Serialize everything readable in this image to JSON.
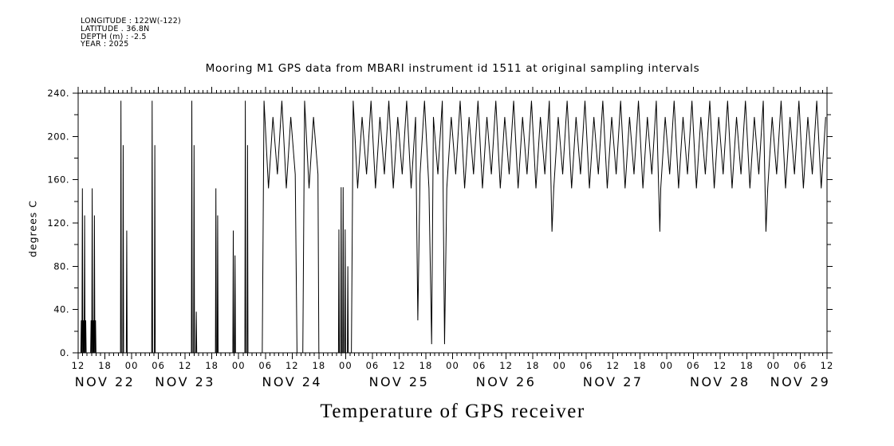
{
  "header": {
    "lines": [
      "LONGITUDE : 122W(-122)",
      "LATITUDE . 36.8N",
      "DEPTH (m) : -2.5",
      "YEAR : 2025"
    ]
  },
  "title": "Mooring M1 GPS data from MBARI instrument id 1511 at original sampling intervals",
  "bottom_title": "Temperature of GPS receiver",
  "chart_data": {
    "type": "line",
    "title": "Mooring M1 GPS data from MBARI instrument id 1511 at original sampling intervals",
    "xlabel": "",
    "ylabel": "degrees C",
    "ylim": [
      0,
      240
    ],
    "y_major_step": 40,
    "y_minor_step": 20,
    "y_tick_labels": [
      "0.",
      "40.",
      "80.",
      "120.",
      "160.",
      "200.",
      "240."
    ],
    "x_hours_range": [
      0,
      168
    ],
    "x_major_step_h": 6,
    "x_minor_step_h": 1,
    "x_hour_labels": [
      "12",
      "18",
      "00",
      "06",
      "12",
      "18",
      "00",
      "06",
      "12",
      "18",
      "00",
      "06",
      "12",
      "18",
      "00",
      "06",
      "12",
      "18",
      "00",
      "06",
      "12",
      "18",
      "00",
      "06",
      "12",
      "18",
      "00",
      "06",
      "12"
    ],
    "day_labels": [
      {
        "label": "NOV 22",
        "t": 6
      },
      {
        "label": "NOV 23",
        "t": 24
      },
      {
        "label": "NOV 24",
        "t": 48
      },
      {
        "label": "NOV 25",
        "t": 72
      },
      {
        "label": "NOV 26",
        "t": 96
      },
      {
        "label": "NOV 27",
        "t": 120
      },
      {
        "label": "NOV 28",
        "t": 144
      },
      {
        "label": "NOV 29",
        "t": 162
      }
    ],
    "grid": false,
    "legend": "none",
    "series_color": "#000000",
    "sampling_note": "hours since NOV 22 12:00; hourly samples",
    "band_cycle": [
      233,
      152,
      218,
      165
    ],
    "sample_step_h": 1,
    "segments": [
      {
        "type": "spike",
        "t": 0.7,
        "v": 30
      },
      {
        "type": "spike",
        "t": 0.95,
        "v": 152
      },
      {
        "type": "spike",
        "t": 1.2,
        "v": 30
      },
      {
        "type": "spike",
        "t": 1.45,
        "v": 127
      },
      {
        "type": "spike",
        "t": 1.7,
        "v": 30
      },
      {
        "type": "spike",
        "t": 2.9,
        "v": 30
      },
      {
        "type": "spike",
        "t": 3.15,
        "v": 152
      },
      {
        "type": "spike",
        "t": 3.4,
        "v": 30
      },
      {
        "type": "spike",
        "t": 3.65,
        "v": 127
      },
      {
        "type": "spike",
        "t": 3.9,
        "v": 30
      },
      {
        "type": "spike",
        "t": 9.6,
        "v": 233
      },
      {
        "type": "spike",
        "t": 10.1,
        "v": 192
      },
      {
        "type": "spike",
        "t": 10.9,
        "v": 113
      },
      {
        "type": "spike",
        "t": 16.6,
        "v": 233
      },
      {
        "type": "spike",
        "t": 17.2,
        "v": 192
      },
      {
        "type": "spike",
        "t": 25.5,
        "v": 233
      },
      {
        "type": "spike",
        "t": 26.0,
        "v": 192
      },
      {
        "type": "spike",
        "t": 26.5,
        "v": 38
      },
      {
        "type": "spike",
        "t": 30.9,
        "v": 152
      },
      {
        "type": "spike",
        "t": 31.3,
        "v": 127
      },
      {
        "type": "spike",
        "t": 34.8,
        "v": 113
      },
      {
        "type": "spike",
        "t": 35.2,
        "v": 90
      },
      {
        "type": "spike",
        "t": 37.5,
        "v": 233
      },
      {
        "type": "spike",
        "t": 38.0,
        "v": 192
      },
      {
        "type": "osc",
        "t0": 41.3,
        "t1": 49.1,
        "dips": []
      },
      {
        "type": "osc",
        "t0": 50.4,
        "t1": 54.0,
        "dips": []
      },
      {
        "type": "spike",
        "t": 58.5,
        "v": 114
      },
      {
        "type": "spike",
        "t": 59.0,
        "v": 153
      },
      {
        "type": "spike",
        "t": 59.45,
        "v": 153
      },
      {
        "type": "spike",
        "t": 59.9,
        "v": 114
      },
      {
        "type": "spike",
        "t": 60.5,
        "v": 80
      },
      {
        "type": "osc",
        "t0": 61.3,
        "t1": 168,
        "dips": [
          {
            "t": 76.2,
            "v": 30
          },
          {
            "t": 79.3,
            "v": 8
          },
          {
            "t": 82.2,
            "v": 8
          },
          {
            "t": 106.3,
            "v": 112
          },
          {
            "t": 130.5,
            "v": 112
          },
          {
            "t": 154.3,
            "v": 112
          }
        ]
      }
    ]
  }
}
